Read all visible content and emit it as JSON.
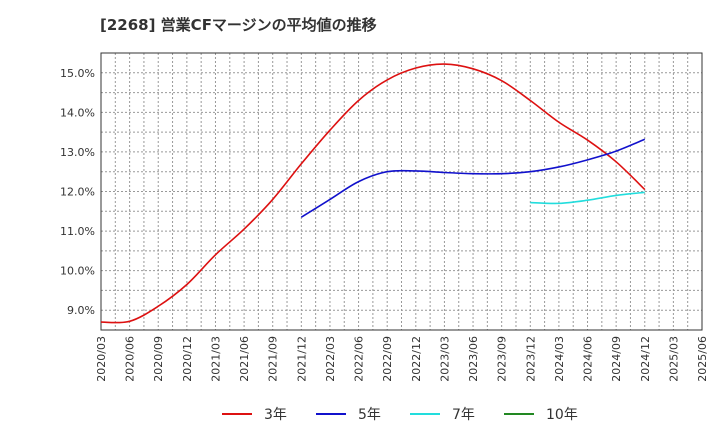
{
  "chart_data": {
    "type": "line",
    "title": "[2268]  営業CFマージンの平均値の推移",
    "xlabel": "",
    "ylabel": "",
    "x": [
      "2020/03",
      "2020/06",
      "2020/09",
      "2020/12",
      "2021/03",
      "2021/06",
      "2021/09",
      "2021/12",
      "2022/03",
      "2022/06",
      "2022/09",
      "2022/12",
      "2023/03",
      "2023/06",
      "2023/09",
      "2023/12",
      "2024/03",
      "2024/06",
      "2024/09",
      "2024/12",
      "2025/03",
      "2025/06"
    ],
    "ylim": [
      8.5,
      15.5
    ],
    "yticks": [
      9.0,
      10.0,
      11.0,
      12.0,
      13.0,
      14.0,
      15.0
    ],
    "ytick_labels": [
      "9.0%",
      "10.0%",
      "11.0%",
      "12.0%",
      "13.0%",
      "14.0%",
      "15.0%"
    ],
    "grid": true,
    "legend_position": "bottom",
    "series": [
      {
        "name": "3年",
        "color": "#dd1111",
        "values": [
          8.7,
          8.72,
          9.1,
          9.65,
          10.4,
          11.05,
          11.8,
          12.7,
          13.55,
          14.3,
          14.82,
          15.12,
          15.22,
          15.1,
          14.8,
          14.3,
          13.75,
          13.3,
          12.75,
          12.05,
          null,
          null
        ]
      },
      {
        "name": "5年",
        "color": "#1111cc",
        "values": [
          null,
          null,
          null,
          null,
          null,
          null,
          null,
          11.35,
          11.8,
          12.25,
          12.5,
          12.52,
          12.48,
          12.45,
          12.45,
          12.5,
          12.62,
          12.8,
          13.02,
          13.32,
          null,
          null
        ]
      },
      {
        "name": "7年",
        "color": "#22dddd",
        "values": [
          null,
          null,
          null,
          null,
          null,
          null,
          null,
          null,
          null,
          null,
          null,
          null,
          null,
          null,
          null,
          11.72,
          11.7,
          11.78,
          11.9,
          11.98,
          null,
          null
        ]
      },
      {
        "name": "10年",
        "color": "#228822",
        "values": [
          null,
          null,
          null,
          null,
          null,
          null,
          null,
          null,
          null,
          null,
          null,
          null,
          null,
          null,
          null,
          null,
          null,
          null,
          null,
          null,
          null,
          null
        ]
      }
    ]
  }
}
